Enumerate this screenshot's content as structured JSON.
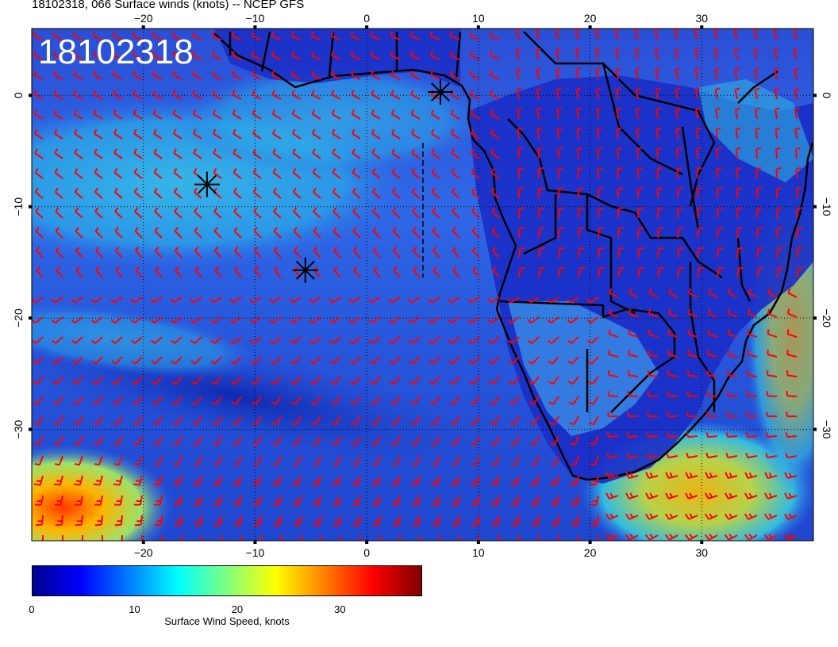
{
  "header": {
    "title": "18102318, 066 Surface winds (knots) -- NCEP GFS",
    "stamp": "18102318"
  },
  "map": {
    "lon_range": [
      -30,
      40
    ],
    "lat_range": [
      -40,
      6
    ],
    "lon_ticks": [
      {
        "value": -20,
        "label": "−20"
      },
      {
        "value": -10,
        "label": "−10"
      },
      {
        "value": 0,
        "label": "0"
      },
      {
        "value": 10,
        "label": "10"
      },
      {
        "value": 20,
        "label": "20"
      },
      {
        "value": 30,
        "label": "30"
      }
    ],
    "lat_ticks": [
      {
        "value": 0,
        "label": "0"
      },
      {
        "value": -10,
        "label": "−10"
      },
      {
        "value": -20,
        "label": "−20"
      },
      {
        "value": -30,
        "label": "−30"
      }
    ],
    "markers": [
      {
        "lon": 6.6,
        "lat": 0.3
      },
      {
        "lon": -14.3,
        "lat": -8.0
      },
      {
        "lon": -5.5,
        "lat": -15.7
      }
    ],
    "barb_color": "#ff0000"
  },
  "colorbar": {
    "label": "Surface Wind Speed, knots",
    "ticks": [
      {
        "value": 0,
        "label": "0"
      },
      {
        "value": 10,
        "label": "10"
      },
      {
        "value": 20,
        "label": "20"
      },
      {
        "value": 30,
        "label": "30"
      }
    ],
    "max": 38,
    "colors": [
      "#00008f",
      "#0000ff",
      "#0080ff",
      "#00ffff",
      "#80ff80",
      "#ffff00",
      "#ff8000",
      "#ff0000",
      "#800000"
    ]
  }
}
